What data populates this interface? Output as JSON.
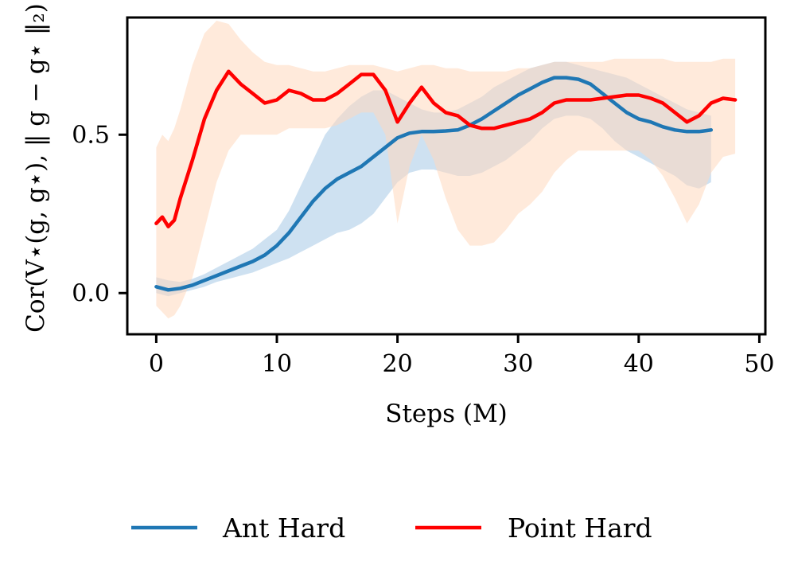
{
  "chart_data": {
    "type": "line",
    "xlabel": "Steps (M)",
    "ylabel": "Cor(V⋆(g, g⋆), ‖ g − g⋆ ‖₂)",
    "xlim": [
      -2.4,
      50.5
    ],
    "ylim": [
      -0.13,
      0.87
    ],
    "xticks": [
      0,
      10,
      20,
      30,
      40,
      50
    ],
    "yticks": [
      0.0,
      0.5
    ],
    "ytick_labels": [
      "0.0",
      "0.5"
    ],
    "legend_position": "bottom-center",
    "series": [
      {
        "name": "Ant Hard",
        "color": "#1f77b4",
        "band_color": "#aecde8",
        "x": [
          0,
          1,
          2,
          3,
          4,
          5,
          6,
          7,
          8,
          9,
          10,
          11,
          12,
          13,
          14,
          15,
          16,
          17,
          18,
          19,
          20,
          21,
          22,
          23,
          24,
          25,
          26,
          27,
          28,
          29,
          30,
          31,
          32,
          33,
          34,
          35,
          36,
          37,
          38,
          39,
          40,
          41,
          42,
          43,
          44,
          45,
          46
        ],
        "y": [
          0.02,
          0.01,
          0.015,
          0.025,
          0.04,
          0.055,
          0.07,
          0.085,
          0.1,
          0.12,
          0.15,
          0.19,
          0.24,
          0.29,
          0.33,
          0.36,
          0.38,
          0.4,
          0.43,
          0.46,
          0.49,
          0.505,
          0.51,
          0.51,
          0.512,
          0.515,
          0.53,
          0.55,
          0.575,
          0.6,
          0.625,
          0.645,
          0.665,
          0.68,
          0.68,
          0.675,
          0.66,
          0.63,
          0.6,
          0.57,
          0.55,
          0.54,
          0.525,
          0.515,
          0.51,
          0.51,
          0.515
        ],
        "lower": [
          0.0,
          -0.01,
          0.0,
          0.01,
          0.02,
          0.035,
          0.045,
          0.055,
          0.065,
          0.08,
          0.095,
          0.11,
          0.13,
          0.15,
          0.17,
          0.19,
          0.2,
          0.22,
          0.25,
          0.3,
          0.35,
          0.38,
          0.39,
          0.39,
          0.38,
          0.37,
          0.37,
          0.38,
          0.4,
          0.42,
          0.45,
          0.48,
          0.52,
          0.55,
          0.56,
          0.56,
          0.55,
          0.52,
          0.48,
          0.45,
          0.43,
          0.41,
          0.39,
          0.37,
          0.34,
          0.33,
          0.35
        ],
        "upper": [
          0.05,
          0.04,
          0.035,
          0.045,
          0.06,
          0.08,
          0.1,
          0.12,
          0.14,
          0.17,
          0.2,
          0.26,
          0.34,
          0.42,
          0.5,
          0.55,
          0.59,
          0.62,
          0.64,
          0.64,
          0.62,
          0.6,
          0.58,
          0.57,
          0.57,
          0.58,
          0.6,
          0.62,
          0.65,
          0.67,
          0.69,
          0.71,
          0.72,
          0.73,
          0.73,
          0.72,
          0.71,
          0.7,
          0.69,
          0.68,
          0.66,
          0.64,
          0.62,
          0.6,
          0.58,
          0.57,
          0.56
        ]
      },
      {
        "name": "Point Hard",
        "color": "#ff0000",
        "band_color": "#ffd9bd",
        "x": [
          0,
          0.5,
          1,
          1.5,
          2,
          3,
          4,
          5,
          6,
          7,
          8,
          9,
          10,
          11,
          12,
          13,
          14,
          15,
          16,
          17,
          18,
          19,
          20,
          21,
          22,
          23,
          24,
          25,
          26,
          27,
          28,
          29,
          30,
          31,
          32,
          33,
          34,
          35,
          36,
          37,
          38,
          39,
          40,
          41,
          42,
          43,
          44,
          45,
          46,
          47,
          48
        ],
        "y": [
          0.22,
          0.24,
          0.21,
          0.23,
          0.3,
          0.42,
          0.55,
          0.64,
          0.7,
          0.66,
          0.63,
          0.6,
          0.61,
          0.64,
          0.63,
          0.61,
          0.61,
          0.63,
          0.66,
          0.69,
          0.69,
          0.64,
          0.54,
          0.6,
          0.65,
          0.6,
          0.57,
          0.56,
          0.53,
          0.52,
          0.52,
          0.53,
          0.54,
          0.55,
          0.57,
          0.6,
          0.61,
          0.61,
          0.61,
          0.615,
          0.62,
          0.625,
          0.625,
          0.615,
          0.6,
          0.57,
          0.54,
          0.56,
          0.6,
          0.615,
          0.61
        ],
        "lower": [
          -0.04,
          -0.06,
          -0.08,
          -0.07,
          -0.04,
          0.05,
          0.2,
          0.35,
          0.45,
          0.5,
          0.5,
          0.5,
          0.5,
          0.52,
          0.52,
          0.52,
          0.52,
          0.53,
          0.55,
          0.57,
          0.57,
          0.5,
          0.22,
          0.4,
          0.5,
          0.42,
          0.3,
          0.2,
          0.15,
          0.15,
          0.16,
          0.2,
          0.25,
          0.28,
          0.32,
          0.38,
          0.42,
          0.45,
          0.45,
          0.45,
          0.45,
          0.45,
          0.45,
          0.42,
          0.37,
          0.3,
          0.22,
          0.28,
          0.38,
          0.43,
          0.44
        ],
        "upper": [
          0.46,
          0.5,
          0.48,
          0.52,
          0.58,
          0.72,
          0.82,
          0.86,
          0.85,
          0.8,
          0.76,
          0.73,
          0.72,
          0.72,
          0.71,
          0.7,
          0.7,
          0.71,
          0.72,
          0.72,
          0.72,
          0.71,
          0.7,
          0.71,
          0.72,
          0.72,
          0.71,
          0.71,
          0.7,
          0.7,
          0.7,
          0.7,
          0.71,
          0.71,
          0.72,
          0.73,
          0.73,
          0.73,
          0.73,
          0.73,
          0.74,
          0.74,
          0.74,
          0.74,
          0.74,
          0.73,
          0.73,
          0.73,
          0.73,
          0.74,
          0.74
        ]
      }
    ]
  }
}
